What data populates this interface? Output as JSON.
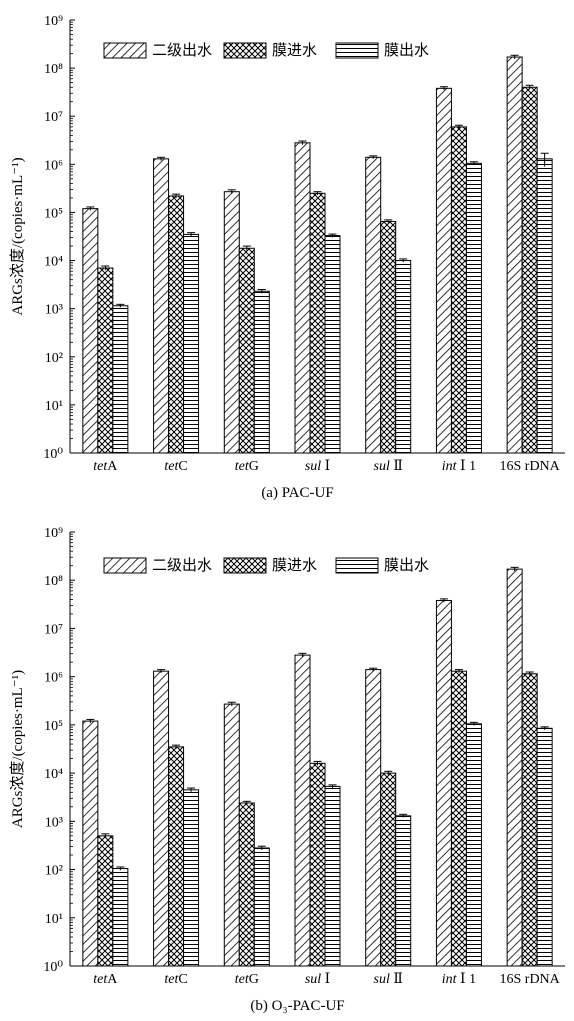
{
  "figure": {
    "captions": [
      "(a) PAC-UF",
      "(b) O₃-PAC-UF"
    ]
  },
  "chart_data": [
    {
      "type": "bar",
      "caption": "(a) PAC-UF",
      "ylabel": "ARGs浓度/(copies·mL⁻¹)",
      "y_scale": "log",
      "ylim": [
        1,
        1000000000
      ],
      "yticks": [
        "10⁰",
        "10¹",
        "10²",
        "10³",
        "10⁴",
        "10⁵",
        "10⁶",
        "10⁷",
        "10⁸",
        "10⁹"
      ],
      "categories": [
        {
          "italic": "tet",
          "rest": "A"
        },
        {
          "italic": "tet",
          "rest": "C"
        },
        {
          "italic": "tet",
          "rest": "G"
        },
        {
          "italic": "sul",
          "rest": " Ⅰ"
        },
        {
          "italic": "sul",
          "rest": " Ⅱ"
        },
        {
          "italic": "int",
          "rest": " Ⅰ 1"
        },
        {
          "italic": "",
          "rest": "16S rDNA"
        }
      ],
      "legend_position": "top-left",
      "series": [
        {
          "name": "二级出水",
          "pattern": "diagonal",
          "values": [
            120000,
            1300000,
            270000,
            2800000,
            1400000,
            38000000,
            170000000
          ],
          "err": [
            10000,
            100000,
            25000,
            250000,
            100000,
            3000000,
            15000000
          ]
        },
        {
          "name": "膜进水",
          "pattern": "crosshatch",
          "values": [
            7000,
            220000,
            18000,
            250000,
            65000,
            6000000,
            40000000
          ],
          "err": [
            700,
            20000,
            2000,
            20000,
            5000,
            500000,
            4000000
          ]
        },
        {
          "name": "膜出水",
          "pattern": "horizontal",
          "values": [
            1150,
            35000,
            2300,
            33000,
            10000,
            1050000,
            1300000
          ],
          "err": [
            80,
            3000,
            200,
            2500,
            800,
            80000,
            400000
          ]
        }
      ]
    },
    {
      "type": "bar",
      "caption": "(b) O₃-PAC-UF",
      "ylabel": "ARGs浓度/(copies·mL⁻¹)",
      "y_scale": "log",
      "ylim": [
        1,
        1000000000
      ],
      "yticks": [
        "10⁰",
        "10¹",
        "10²",
        "10³",
        "10⁴",
        "10⁵",
        "10⁶",
        "10⁷",
        "10⁸",
        "10⁹"
      ],
      "categories": [
        {
          "italic": "tet",
          "rest": "A"
        },
        {
          "italic": "tet",
          "rest": "C"
        },
        {
          "italic": "tet",
          "rest": "G"
        },
        {
          "italic": "sul",
          "rest": " Ⅰ"
        },
        {
          "italic": "sul",
          "rest": " Ⅱ"
        },
        {
          "italic": "int",
          "rest": " Ⅰ 1"
        },
        {
          "italic": "",
          "rest": "16S rDNA"
        }
      ],
      "legend_position": "top-left",
      "series": [
        {
          "name": "二级出水",
          "pattern": "diagonal",
          "values": [
            120000,
            1300000,
            270000,
            2800000,
            1400000,
            38000000,
            170000000
          ],
          "err": [
            10000,
            100000,
            25000,
            250000,
            100000,
            3000000,
            15000000
          ]
        },
        {
          "name": "膜进水",
          "pattern": "crosshatch",
          "values": [
            500,
            35000,
            2400,
            16000,
            10000,
            1300000,
            1150000
          ],
          "err": [
            50,
            3000,
            200,
            1500,
            900,
            100000,
            100000
          ]
        },
        {
          "name": "膜出水",
          "pattern": "horizontal",
          "values": [
            105,
            4500,
            280,
            5300,
            1300,
            105000,
            85000
          ],
          "err": [
            8,
            400,
            25,
            400,
            100,
            8000,
            6000
          ]
        }
      ]
    }
  ]
}
